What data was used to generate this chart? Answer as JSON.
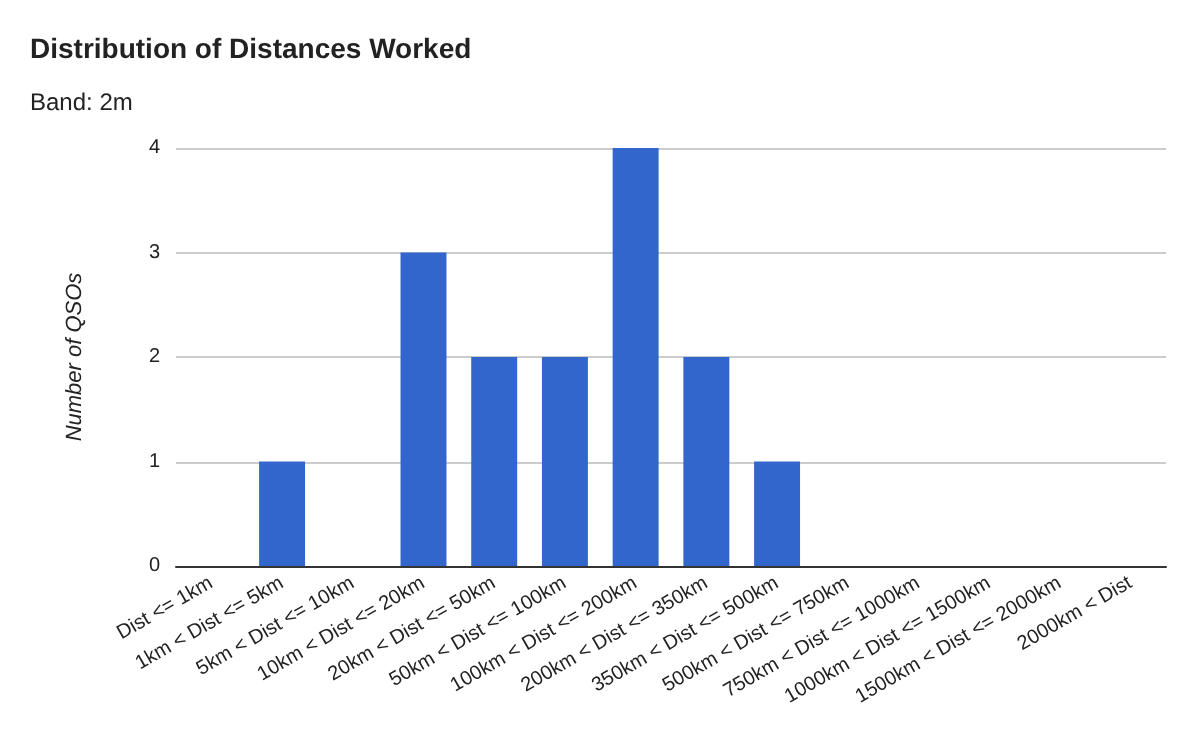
{
  "chart_data": {
    "type": "bar",
    "title": "Distribution of Distances Worked",
    "subtitle": "Band: 2m",
    "ylabel": "Number of QSOs",
    "categories": [
      "Dist <= 1km",
      "1km < Dist <= 5km",
      "5km < Dist <= 10km",
      "10km < Dist <= 20km",
      "20km < Dist <= 50km",
      "50km < Dist <= 100km",
      "100km < Dist <= 200km",
      "200km < Dist <= 350km",
      "350km < Dist <= 500km",
      "500km < Dist <= 750km",
      "750km < Dist <= 1000km",
      "1000km < Dist <= 1500km",
      "1500km < Dist <= 2000km",
      "2000km < Dist"
    ],
    "values": [
      0,
      1,
      0,
      3,
      2,
      2,
      4,
      2,
      1,
      0,
      0,
      0,
      0,
      0
    ],
    "color": "#3366cc",
    "ylim": [
      0,
      4
    ],
    "yticks": [
      0,
      1,
      2,
      3,
      4
    ],
    "grid": "y"
  }
}
